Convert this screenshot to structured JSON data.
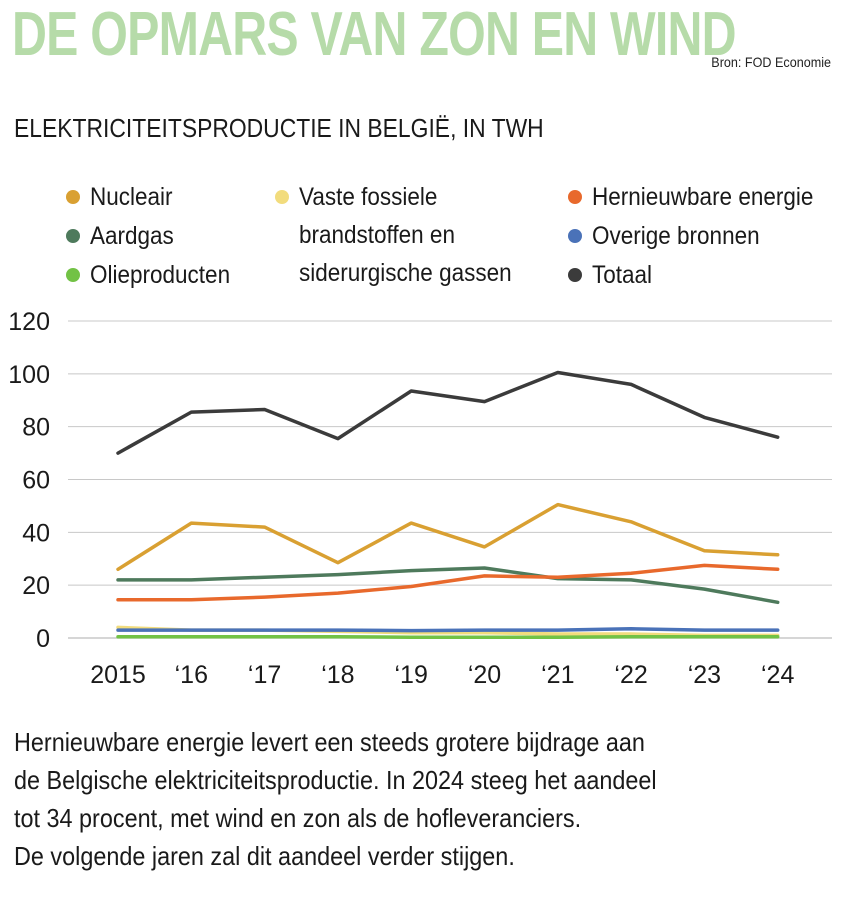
{
  "header": {
    "title": "DE OPMARS VAN ZON EN WIND",
    "source": "Bron: FOD Economie",
    "subtitle": "ELEKTRICITEITSPRODUCTIE IN BELGIË, IN TWH"
  },
  "legend": [
    {
      "label": "Nucleair",
      "color": "#d9a032"
    },
    {
      "label": "Aardgas",
      "color": "#4e7a5c"
    },
    {
      "label": "Olieproducten",
      "color": "#72c245"
    },
    {
      "label": "Vaste fossiele\nbrandstoffen en\nsiderurgische gassen",
      "color": "#f2dc7d"
    },
    {
      "label": "Hernieuwbare energie",
      "color": "#e8692c"
    },
    {
      "label": "Overige bronnen",
      "color": "#4a72b8"
    },
    {
      "label": "Totaal",
      "color": "#3b3b3b"
    }
  ],
  "chart_data": {
    "type": "line",
    "categories": [
      "2015",
      "‘16",
      "‘17",
      "‘18",
      "‘19",
      "‘20",
      "‘21",
      "‘22",
      "‘23",
      "‘24"
    ],
    "ylim": [
      0,
      120
    ],
    "yticks": [
      "0",
      "20",
      "40",
      "60",
      "80",
      "100",
      "120"
    ],
    "grid": true,
    "series": [
      {
        "name": "Vaste fossiele brandstoffen en siderurgische gassen",
        "color": "#f2dc7d",
        "values": [
          4,
          3,
          3,
          2.5,
          2,
          2,
          1.5,
          1.5,
          1,
          1
        ]
      },
      {
        "name": "Olieproducten",
        "color": "#72c245",
        "values": [
          0.5,
          0.5,
          0.5,
          0.5,
          0.3,
          0.3,
          0.3,
          0.5,
          0.5,
          0.5
        ]
      },
      {
        "name": "Overige bronnen",
        "color": "#4a72b8",
        "values": [
          3,
          3,
          3,
          3,
          2.8,
          3,
          3,
          3.5,
          3,
          3
        ]
      },
      {
        "name": "Aardgas",
        "color": "#4e7a5c",
        "values": [
          22,
          22,
          23,
          24,
          25.5,
          26.5,
          22.5,
          22,
          18.5,
          13.5
        ]
      },
      {
        "name": "Hernieuwbare energie",
        "color": "#e8692c",
        "values": [
          14.5,
          14.5,
          15.5,
          17,
          19.5,
          23.5,
          23,
          24.5,
          27.5,
          26
        ]
      },
      {
        "name": "Nucleair",
        "color": "#d9a032",
        "values": [
          26,
          43.5,
          42,
          28.5,
          43.5,
          34.5,
          50.5,
          44,
          33,
          31.5
        ]
      },
      {
        "name": "Totaal",
        "color": "#3b3b3b",
        "values": [
          70,
          85.5,
          86.5,
          75.5,
          93.5,
          89.5,
          100.5,
          96,
          83.5,
          76
        ]
      }
    ]
  },
  "caption": [
    "Hernieuwbare energie levert een steeds grotere bijdrage aan",
    "de Belgische elektriciteitsproductie. In 2024 steeg het aandeel",
    "tot 34 procent, met wind en zon als de hofleveranciers.",
    "De volgende jaren zal dit aandeel verder stijgen."
  ],
  "colors": {
    "title": "#b6dba9",
    "grid": "#c8c8c8"
  }
}
